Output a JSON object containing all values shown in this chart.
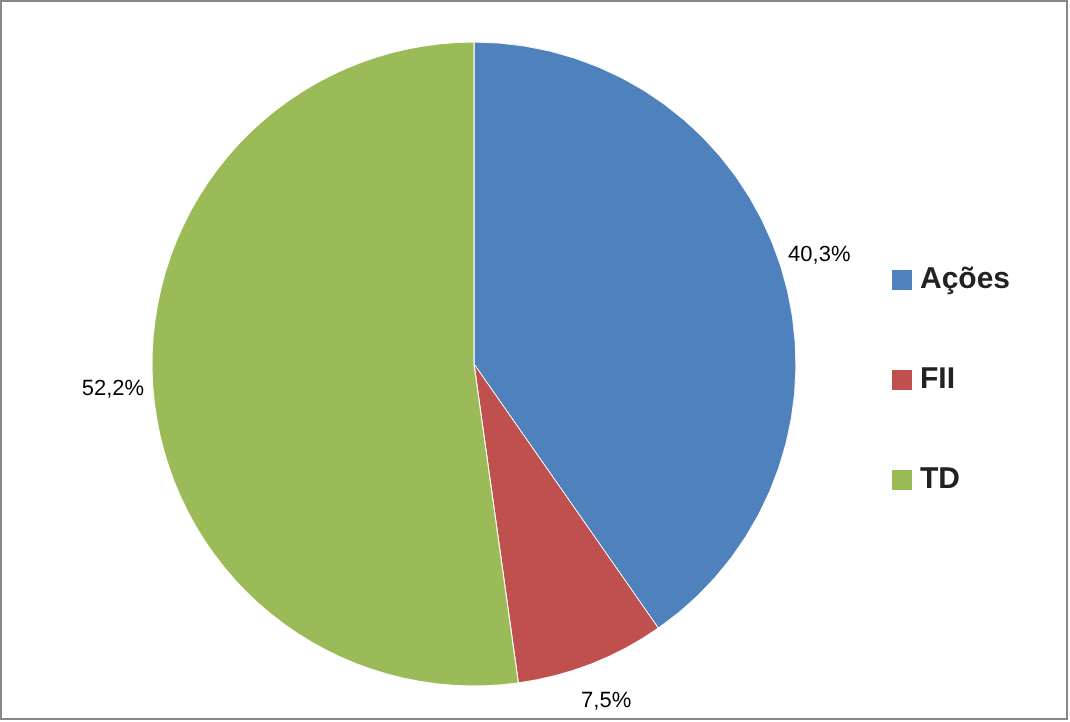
{
  "chart_data": {
    "type": "pie",
    "categories": [
      "Ações",
      "FII",
      "TD"
    ],
    "values": [
      40.3,
      7.5,
      52.2
    ],
    "colors": [
      "#4f81bd",
      "#c0504d",
      "#9bbb59"
    ],
    "value_labels": [
      "40,3%",
      "7,5%",
      "52,2%"
    ],
    "legend": "right"
  }
}
